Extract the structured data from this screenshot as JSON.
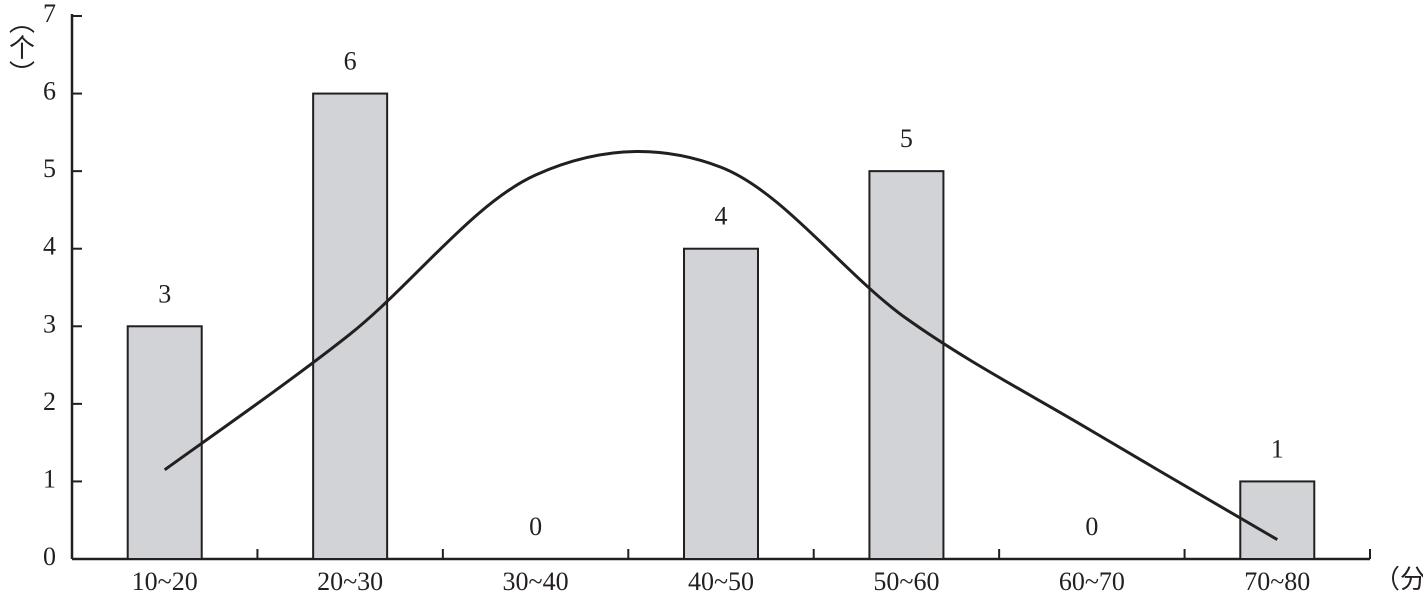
{
  "chart_data": {
    "type": "bar",
    "y_label": "（个）",
    "x_label": "（分）",
    "categories": [
      "10~20",
      "20~30",
      "30~40",
      "40~50",
      "50~60",
      "60~70",
      "70~80"
    ],
    "values": [
      3,
      6,
      0,
      4,
      5,
      0,
      1
    ],
    "color": "#d1d3d6",
    "line_values": [
      1.15,
      2.9,
      4.95,
      5.05,
      3.1,
      1.65,
      0.25
    ],
    "line_color": "#231f20",
    "ylim": [
      0,
      7
    ],
    "yticks": [
      0,
      1,
      2,
      3,
      4,
      5,
      6,
      7
    ]
  }
}
